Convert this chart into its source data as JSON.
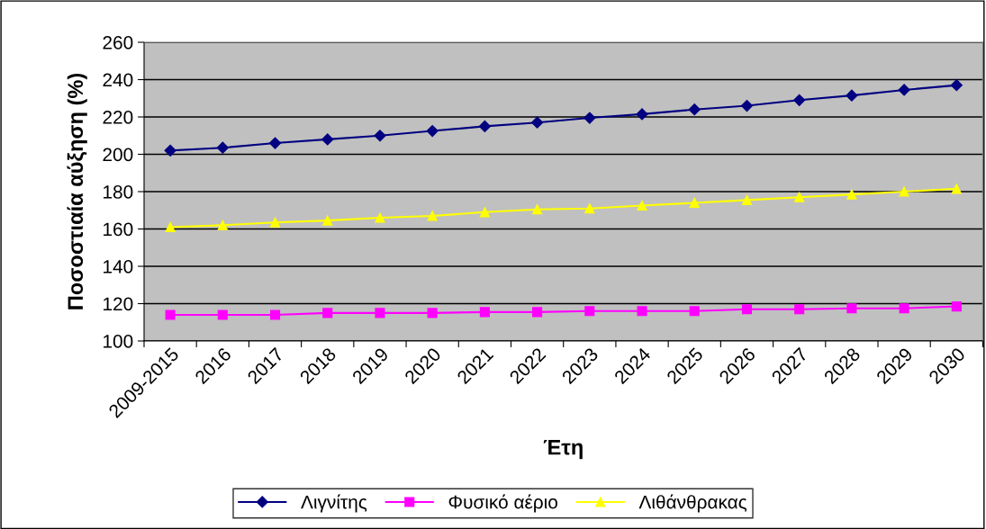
{
  "chart_data": {
    "type": "line",
    "xlabel": "Έτη",
    "ylabel": "Ποσοστιαία αύξηση (%)",
    "categories": [
      "2009-2015",
      "2016",
      "2017",
      "2018",
      "2019",
      "2020",
      "2021",
      "2022",
      "2023",
      "2024",
      "2025",
      "2026",
      "2027",
      "2028",
      "2029",
      "2030"
    ],
    "series": [
      {
        "name": "Λιγνίτης",
        "color": "#000080",
        "marker": "diamond",
        "values": [
          202,
          203.5,
          206,
          208,
          210,
          212.5,
          215,
          217,
          219.5,
          221.5,
          224,
          226,
          229,
          231.5,
          234.5,
          237
        ]
      },
      {
        "name": "Φυσικό αέριο",
        "color": "#ff00ff",
        "marker": "square",
        "values": [
          114,
          114,
          114,
          115,
          115,
          115,
          115.5,
          115.5,
          116,
          116,
          116,
          117,
          117,
          117.5,
          117.5,
          118.5
        ]
      },
      {
        "name": "Λιθάνθρακας",
        "color": "#ffff00",
        "marker": "triangle",
        "values": [
          161,
          162,
          163.5,
          164.5,
          166,
          167,
          169,
          170.5,
          171,
          172.5,
          174,
          175.5,
          177,
          178.5,
          180,
          181.5
        ]
      }
    ],
    "ylim": [
      100,
      260
    ],
    "yticks": [
      100,
      120,
      140,
      160,
      180,
      200,
      220,
      240,
      260
    ],
    "grid": "y",
    "legend": "bottom",
    "line_style": "solid"
  }
}
